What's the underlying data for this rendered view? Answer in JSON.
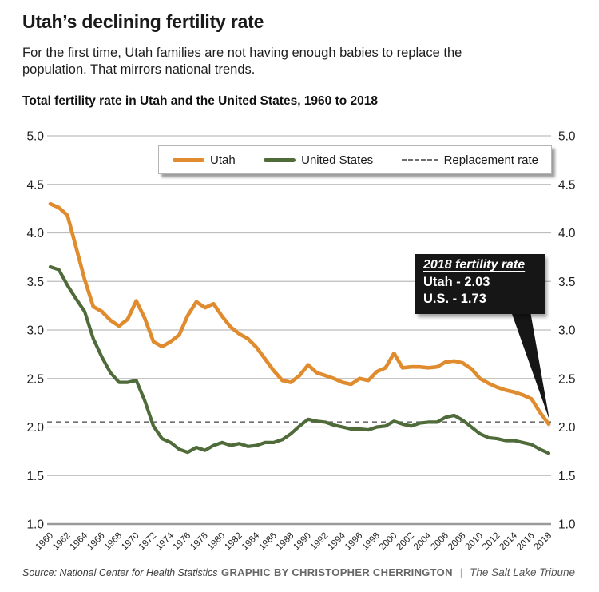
{
  "header": {
    "title": "Utah’s declining fertility rate",
    "subtitle": "For the first time, Utah families are not having enough babies to replace the population. That mirrors national trends.",
    "chart_label": "Total fertility rate in Utah and the United States, 1960 to 2018"
  },
  "legend": {
    "items": [
      {
        "label": "Utah",
        "color": "#E08C2E",
        "style": "solid"
      },
      {
        "label": "United States",
        "color": "#4E6B39",
        "style": "solid"
      },
      {
        "label": "Replacement rate",
        "color": "#6E6E6E",
        "style": "dashed"
      }
    ]
  },
  "annotation": {
    "title": "2018 fertility rate",
    "lines": [
      "Utah - 2.03",
      "U.S. - 1.73"
    ],
    "bg_color": "#161616",
    "pointer_year": 2018,
    "pointer_value": 2.03
  },
  "footer": {
    "source": "Source: National Center for Health Statistics",
    "credit": "GRAPHIC BY CHRISTOPHER CHERRINGTON",
    "divider": "|",
    "publication": "The Salt Lake Tribune"
  },
  "chart_data": {
    "type": "line",
    "title": "Total fertility rate in Utah and the United States, 1960 to 2018",
    "xlabel": "",
    "ylabel": "",
    "ylim": [
      1.0,
      5.0
    ],
    "grid": true,
    "legend_position": "top",
    "replacement_rate": 2.05,
    "yticks": [
      5.0,
      4.5,
      4.0,
      3.5,
      3.0,
      2.5,
      2.0,
      1.5,
      1.0
    ],
    "xticks": [
      1960,
      1962,
      1964,
      1966,
      1968,
      1970,
      1972,
      1974,
      1976,
      1978,
      1980,
      1982,
      1984,
      1986,
      1988,
      1990,
      1992,
      1994,
      1996,
      1998,
      2000,
      2002,
      2004,
      2006,
      2008,
      2010,
      2012,
      2014,
      2016,
      2018
    ],
    "x": [
      1960,
      1961,
      1962,
      1963,
      1964,
      1965,
      1966,
      1967,
      1968,
      1969,
      1970,
      1971,
      1972,
      1973,
      1974,
      1975,
      1976,
      1977,
      1978,
      1979,
      1980,
      1981,
      1982,
      1983,
      1984,
      1985,
      1986,
      1987,
      1988,
      1989,
      1990,
      1991,
      1992,
      1993,
      1994,
      1995,
      1996,
      1997,
      1998,
      1999,
      2000,
      2001,
      2002,
      2003,
      2004,
      2005,
      2006,
      2007,
      2008,
      2009,
      2010,
      2011,
      2012,
      2013,
      2014,
      2015,
      2016,
      2017,
      2018
    ],
    "series": [
      {
        "name": "Utah",
        "color": "#E08C2E",
        "values": [
          4.3,
          4.26,
          4.18,
          3.85,
          3.52,
          3.24,
          3.19,
          3.1,
          3.04,
          3.11,
          3.3,
          3.12,
          2.88,
          2.83,
          2.88,
          2.95,
          3.15,
          3.29,
          3.23,
          3.27,
          3.14,
          3.03,
          2.96,
          2.91,
          2.82,
          2.7,
          2.58,
          2.48,
          2.46,
          2.53,
          2.64,
          2.56,
          2.53,
          2.5,
          2.46,
          2.44,
          2.5,
          2.48,
          2.57,
          2.61,
          2.76,
          2.61,
          2.62,
          2.62,
          2.61,
          2.62,
          2.67,
          2.68,
          2.66,
          2.6,
          2.5,
          2.45,
          2.41,
          2.38,
          2.36,
          2.33,
          2.29,
          2.15,
          2.03
        ]
      },
      {
        "name": "United States",
        "color": "#4E6B39",
        "values": [
          3.65,
          3.62,
          3.46,
          3.32,
          3.19,
          2.91,
          2.72,
          2.56,
          2.46,
          2.46,
          2.48,
          2.27,
          2.01,
          1.88,
          1.84,
          1.77,
          1.74,
          1.79,
          1.76,
          1.81,
          1.84,
          1.81,
          1.83,
          1.8,
          1.81,
          1.84,
          1.84,
          1.87,
          1.93,
          2.01,
          2.08,
          2.06,
          2.05,
          2.02,
          2.0,
          1.98,
          1.98,
          1.97,
          2.0,
          2.01,
          2.06,
          2.03,
          2.01,
          2.04,
          2.05,
          2.05,
          2.1,
          2.12,
          2.07,
          2.0,
          1.93,
          1.89,
          1.88,
          1.86,
          1.86,
          1.84,
          1.82,
          1.77,
          1.73
        ]
      }
    ]
  }
}
